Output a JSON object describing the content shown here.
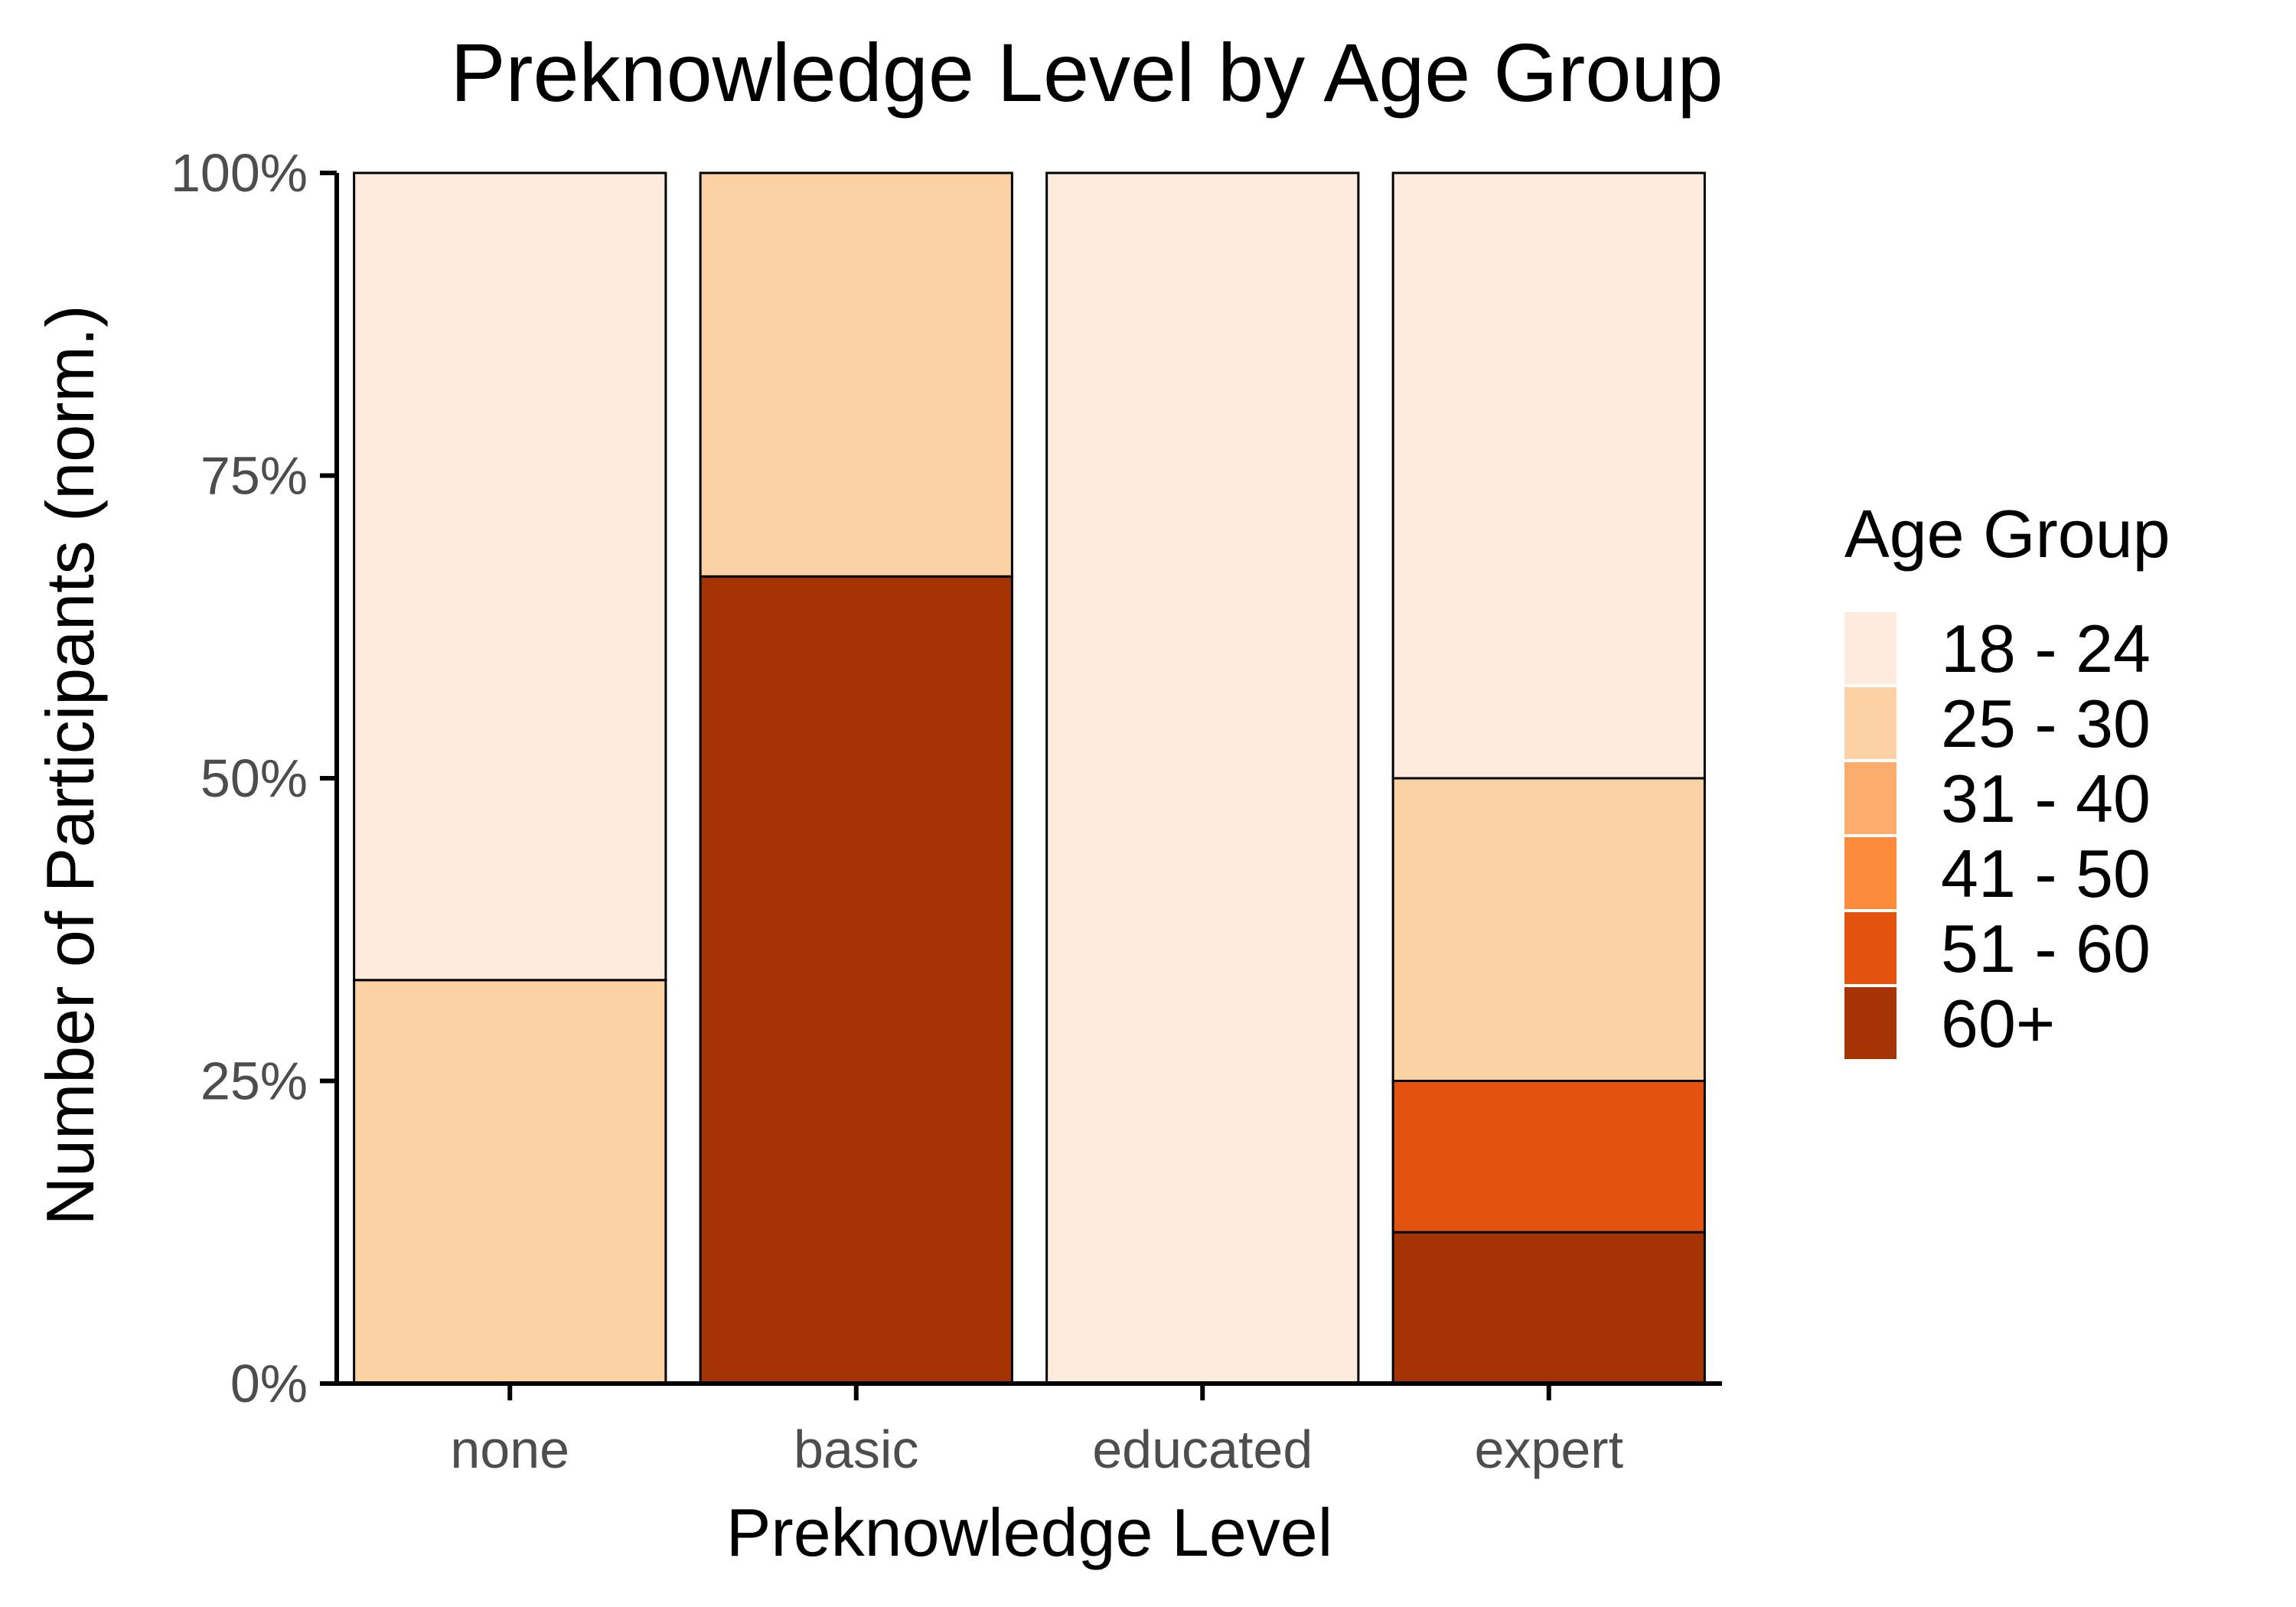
{
  "chart_data": {
    "type": "bar",
    "stacked": true,
    "normalized": true,
    "title": "Preknowledge Level by Age Group",
    "xlabel": "Preknowledge Level",
    "ylabel": "Number of Participants (norm.)",
    "categories": [
      "none",
      "basic",
      "educated",
      "expert"
    ],
    "ylim": [
      0,
      1
    ],
    "y_ticks": [
      0,
      0.25,
      0.5,
      0.75,
      1.0
    ],
    "y_tick_labels": [
      "0%",
      "25%",
      "50%",
      "75%",
      "100%"
    ],
    "grid": false,
    "legend": {
      "title": "Age Group",
      "position": "right"
    },
    "series": [
      {
        "name": "18 - 24",
        "color": "#FEEBDD",
        "values": [
          0.6667,
          0,
          1.0,
          0.5
        ]
      },
      {
        "name": "25 - 30",
        "color": "#FCD1A4",
        "values": [
          0.3333,
          0.3333,
          0,
          0.25
        ]
      },
      {
        "name": "31 - 40",
        "color": "#FCAC6C",
        "values": [
          0,
          0,
          0,
          0
        ]
      },
      {
        "name": "41 - 50",
        "color": "#FC8C3C",
        "values": [
          0,
          0,
          0,
          0
        ]
      },
      {
        "name": "51 - 60",
        "color": "#E45410",
        "values": [
          0,
          0,
          0,
          0.125
        ]
      },
      {
        "name": "60+",
        "color": "#A43404",
        "values": [
          0,
          0.6667,
          0,
          0.125
        ]
      }
    ]
  }
}
